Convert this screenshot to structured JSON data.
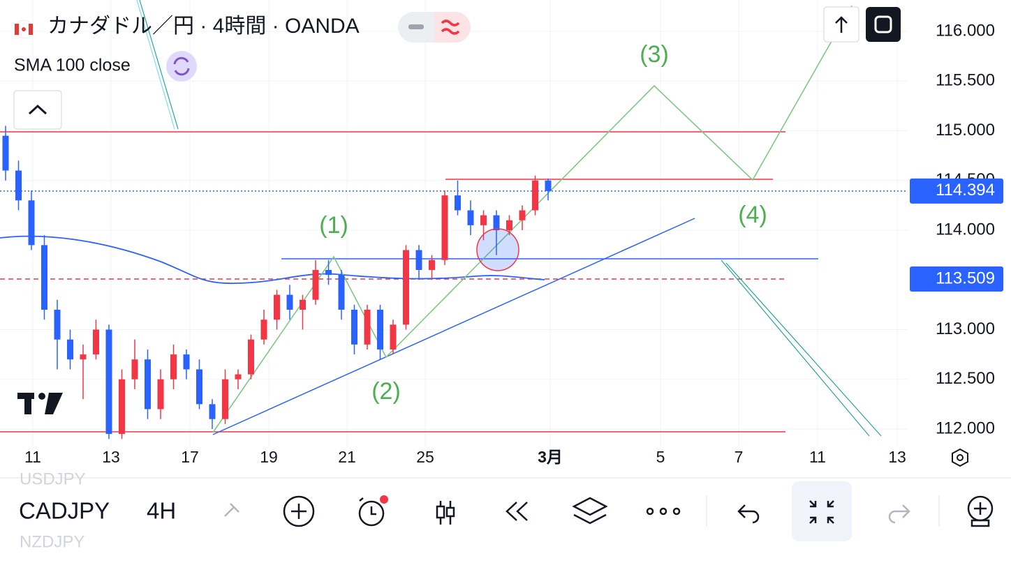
{
  "header": {
    "title": "カナダドル／円 · 4時間 · OANDA",
    "indicator": "SMA 100 close"
  },
  "price_axis": {
    "ticks": [
      {
        "value": 116,
        "label": "116.000"
      },
      {
        "value": 115.5,
        "label": "115.500"
      },
      {
        "value": 115,
        "label": "115.000"
      },
      {
        "value": 114.5,
        "label": "114.500"
      },
      {
        "value": 114,
        "label": "114.000"
      },
      {
        "value": 113,
        "label": "113.000"
      },
      {
        "value": 112.5,
        "label": "112.500"
      },
      {
        "value": 112,
        "label": "112.000"
      }
    ],
    "last_price": 114.394,
    "avg_price": 113.509
  },
  "time_axis": {
    "labels": [
      "11",
      "13",
      "17",
      "19",
      "21",
      "25",
      "3月",
      "5",
      "7",
      "11",
      "13"
    ]
  },
  "candles": [
    [
      114.95,
      115.05,
      114.5,
      114.6
    ],
    [
      114.6,
      114.7,
      114.2,
      114.3
    ],
    [
      114.3,
      114.4,
      113.8,
      113.85
    ],
    [
      113.85,
      113.95,
      113.1,
      113.2
    ],
    [
      113.2,
      113.3,
      112.6,
      112.9
    ],
    [
      112.9,
      113.0,
      112.6,
      112.7
    ],
    [
      112.7,
      112.85,
      112.3,
      112.75
    ],
    [
      112.75,
      113.1,
      112.7,
      113.0
    ],
    [
      113.0,
      113.05,
      111.9,
      111.95
    ],
    [
      111.95,
      112.6,
      111.9,
      112.5
    ],
    [
      112.5,
      112.9,
      112.4,
      112.7
    ],
    [
      112.7,
      112.8,
      112.1,
      112.2
    ],
    [
      112.2,
      112.6,
      112.1,
      112.5
    ],
    [
      112.5,
      112.85,
      112.4,
      112.75
    ],
    [
      112.75,
      112.8,
      112.5,
      112.6
    ],
    [
      112.6,
      112.7,
      112.2,
      112.25
    ],
    [
      112.25,
      112.3,
      112.0,
      112.1
    ],
    [
      112.1,
      112.6,
      112.05,
      112.5
    ],
    [
      112.5,
      112.6,
      112.4,
      112.55
    ],
    [
      112.55,
      112.95,
      112.5,
      112.9
    ],
    [
      112.9,
      113.2,
      112.85,
      113.1
    ],
    [
      113.1,
      113.4,
      113.0,
      113.35
    ],
    [
      113.35,
      113.45,
      113.1,
      113.2
    ],
    [
      113.2,
      113.35,
      113.0,
      113.3
    ],
    [
      113.3,
      113.7,
      113.25,
      113.6
    ],
    [
      113.6,
      113.7,
      113.45,
      113.55
    ],
    [
      113.55,
      113.6,
      113.1,
      113.2
    ],
    [
      113.2,
      113.25,
      112.75,
      112.85
    ],
    [
      112.85,
      113.25,
      112.8,
      113.2
    ],
    [
      113.2,
      113.25,
      112.7,
      112.8
    ],
    [
      112.8,
      113.1,
      112.75,
      113.05
    ],
    [
      113.05,
      113.85,
      113.0,
      113.8
    ],
    [
      113.8,
      113.85,
      113.5,
      113.6
    ],
    [
      113.6,
      113.75,
      113.5,
      113.7
    ],
    [
      113.7,
      114.4,
      113.65,
      114.35
    ],
    [
      114.35,
      114.5,
      114.15,
      114.2
    ],
    [
      114.2,
      114.3,
      113.95,
      114.05
    ],
    [
      114.05,
      114.2,
      113.9,
      114.15
    ],
    [
      114.15,
      114.2,
      113.75,
      114.0
    ],
    [
      114.0,
      114.15,
      113.95,
      114.1
    ],
    [
      114.1,
      114.25,
      114.0,
      114.2
    ],
    [
      114.2,
      114.55,
      114.15,
      114.5
    ],
    [
      114.5,
      114.52,
      114.3,
      114.394
    ]
  ],
  "annotations": [
    "(1)",
    "(2)",
    "(3)",
    "(4)"
  ],
  "toolbar": {
    "symbol": "CADJPY",
    "interval": "4H"
  },
  "watchlist": [
    "USDJPY",
    "NZDJPY"
  ]
}
